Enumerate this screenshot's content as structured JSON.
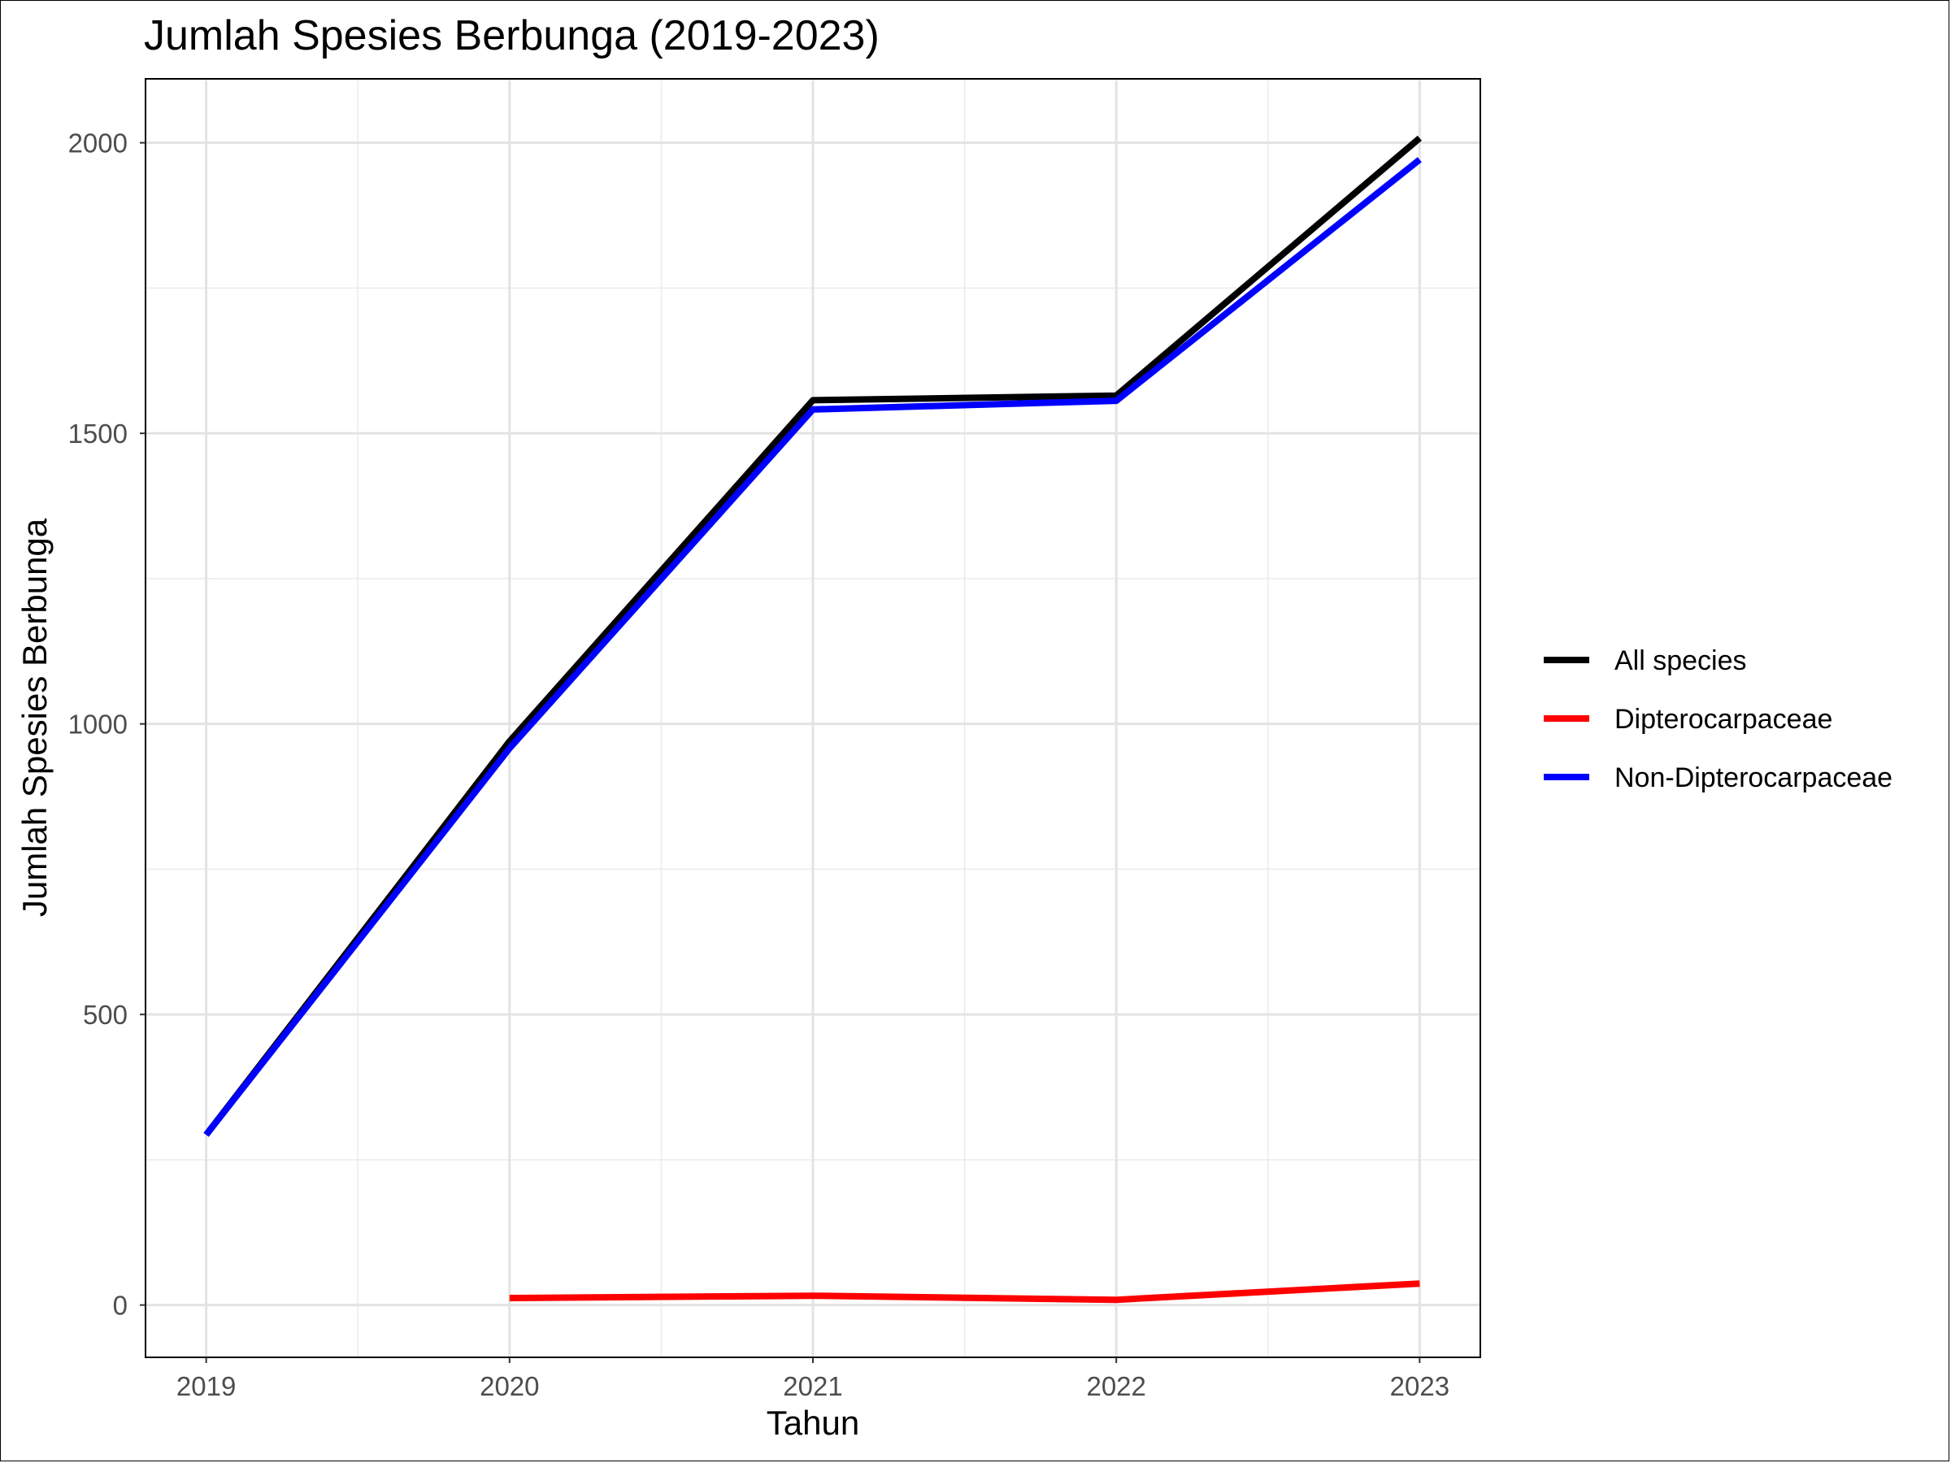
{
  "chart_data": {
    "type": "line",
    "title": "Jumlah Spesies Berbunga (2019-2023)",
    "xlabel": "Tahun",
    "ylabel": "Jumlah Spesies Berbunga",
    "x": [
      2019,
      2020,
      2021,
      2022,
      2023
    ],
    "x_tick_labels": [
      "2019",
      "2020",
      "2021",
      "2022",
      "2023"
    ],
    "y_ticks": [
      0,
      500,
      1000,
      1500,
      2000
    ],
    "y_tick_labels": [
      "0",
      "500",
      "1000",
      "1500",
      "2000"
    ],
    "xlim": [
      2018.8,
      2023.2
    ],
    "ylim": [
      -90,
      2110
    ],
    "grid": true,
    "legend_position": "right",
    "series": [
      {
        "name": "All species",
        "color": "#000000",
        "values": [
          293,
          970,
          1557,
          1565,
          2008
        ]
      },
      {
        "name": "Dipterocarpaceae",
        "color": "#ff0000",
        "values": [
          null,
          12,
          16,
          9,
          37
        ]
      },
      {
        "name": "Non-Dipterocarpaceae",
        "color": "#0000ff",
        "values": [
          293,
          958,
          1541,
          1556,
          1971
        ]
      }
    ]
  }
}
